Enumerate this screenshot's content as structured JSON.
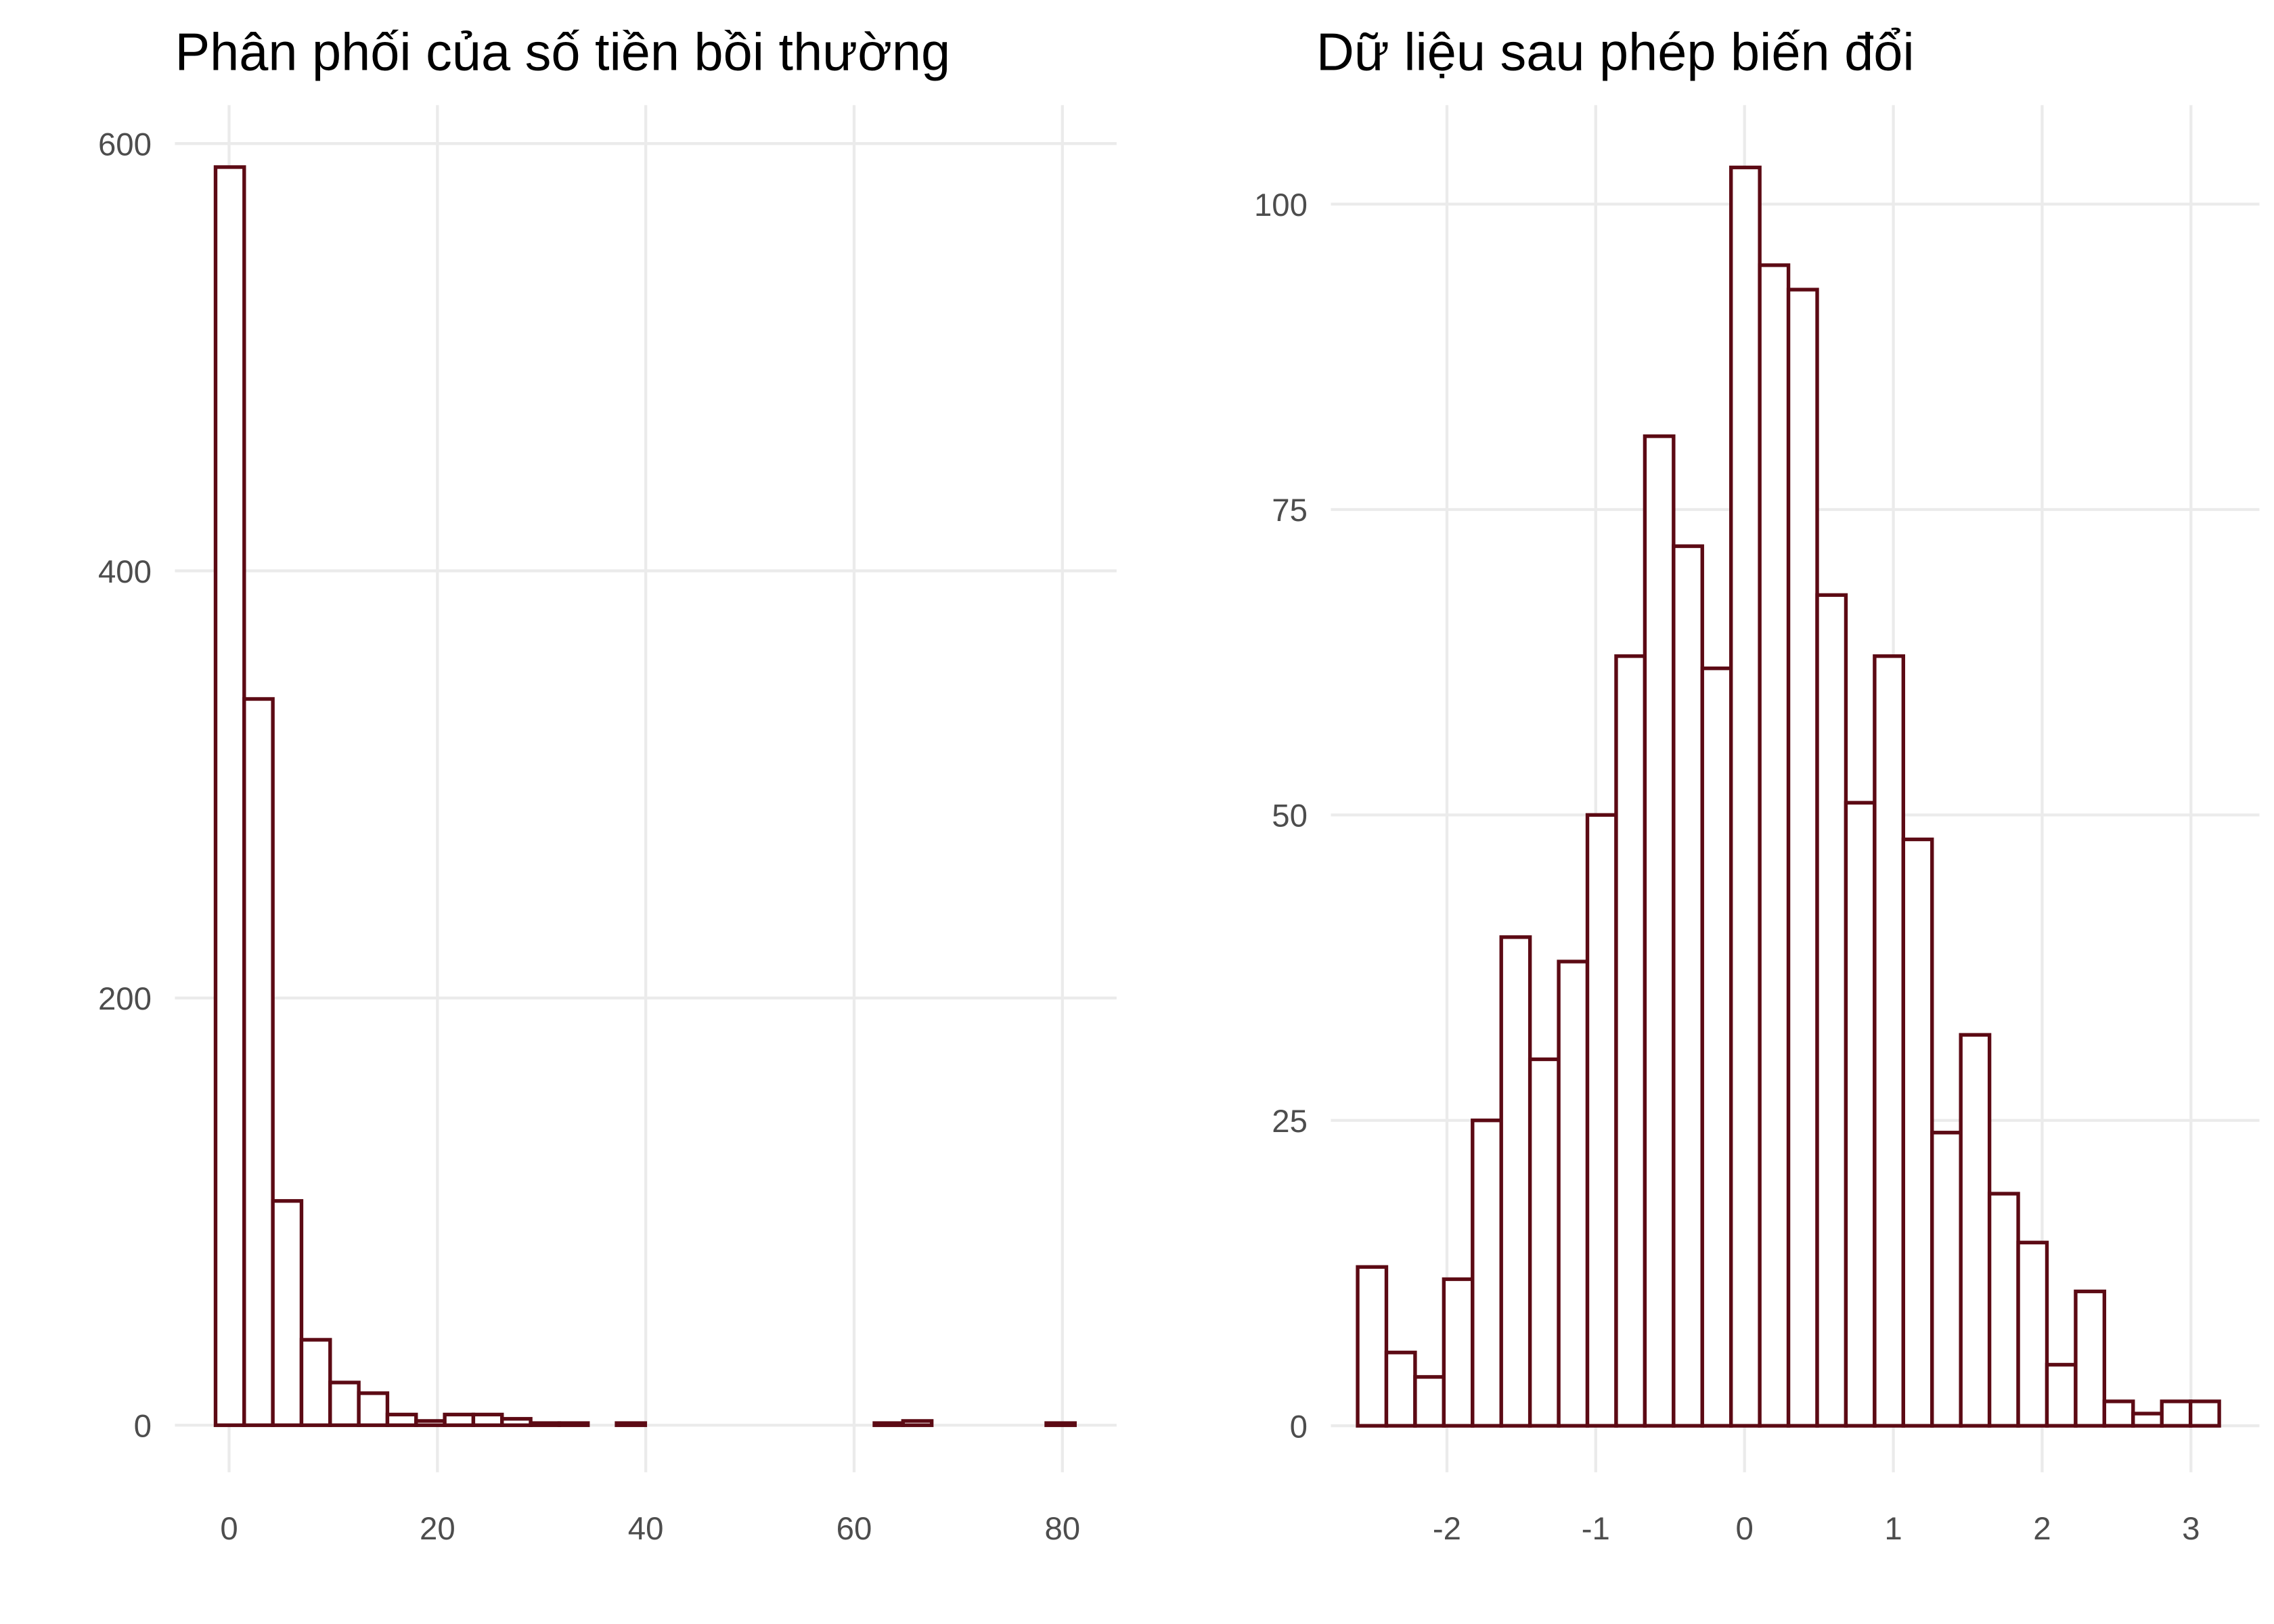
{
  "chart_data": [
    {
      "type": "histogram",
      "title": "Phân phối của số tiền bồi thường",
      "bins": [
        -1.3,
        1.45,
        4.2,
        6.95,
        9.7,
        12.45,
        15.2,
        17.95,
        20.7,
        23.45,
        26.2,
        28.95,
        31.7,
        34.45,
        37.2,
        39.95,
        42.7,
        45.45,
        48.2,
        50.95,
        53.7,
        56.45,
        59.2,
        61.95,
        64.7,
        67.45,
        70.2,
        72.95,
        75.7,
        78.45,
        81.2
      ],
      "counts": [
        589,
        340,
        105,
        40,
        20,
        15,
        5,
        2,
        5,
        5,
        3,
        1,
        1,
        0,
        1,
        0,
        0,
        0,
        0,
        0,
        0,
        0,
        0,
        1,
        2,
        0,
        0,
        0,
        0,
        1
      ],
      "color": "#5c0a14",
      "xlim": [
        -5.2,
        85.2
      ],
      "xticks": [
        0,
        20,
        40,
        60,
        80
      ],
      "ylim": [
        -22,
        618
      ],
      "yticks": [
        0,
        200,
        400,
        600
      ],
      "grid": true
    },
    {
      "type": "histogram",
      "title": "Dữ liệu sau phép biến đổi",
      "bins": [
        -2.6,
        -2.407,
        -2.214,
        -2.021,
        -1.828,
        -1.635,
        -1.442,
        -1.249,
        -1.056,
        -0.863,
        -0.67,
        -0.477,
        -0.284,
        -0.091,
        0.102,
        0.295,
        0.488,
        0.681,
        0.874,
        1.067,
        1.26,
        1.453,
        1.646,
        1.839,
        2.032,
        2.225,
        2.418,
        2.611,
        2.804,
        2.997,
        3.19
      ],
      "counts": [
        13,
        6,
        4,
        12,
        25,
        40,
        30,
        38,
        50,
        63,
        81,
        72,
        62,
        103,
        95,
        93,
        68,
        51,
        63,
        48,
        24,
        32,
        19,
        15,
        5,
        11,
        2,
        1,
        2,
        2
      ],
      "color": "#5c0a14",
      "xlim": [
        -2.78,
        3.46
      ],
      "xticks": [
        -2,
        -1,
        0,
        1,
        2,
        3
      ],
      "ylim": [
        -3.8,
        108.1
      ],
      "yticks": [
        0,
        25,
        50,
        75,
        100
      ],
      "grid": true
    }
  ]
}
